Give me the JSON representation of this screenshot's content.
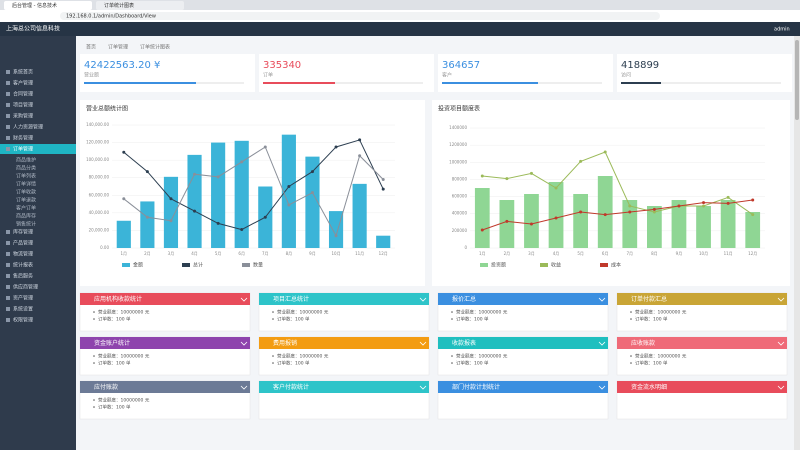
{
  "browser": {
    "tabs": [
      "后台管理 - 信息技术",
      "订单统计图表"
    ],
    "url": "192.168.0.1/admin/Dashboard/View"
  },
  "header": {
    "title": "上海总公司信息科技",
    "user": "admin"
  },
  "sidebar": {
    "items": [
      "系统首页",
      "客户管理",
      "合同管理",
      "项目管理",
      "采购管理",
      "人力资源管理",
      "财务管理",
      "订单管理"
    ],
    "active": 7,
    "subitems": [
      "商品维护",
      "商品分类",
      "订单列表",
      "订单详情",
      "订单收款",
      "订单退款",
      "客户订单",
      "商品库存",
      "销售统计"
    ],
    "more": [
      "库存管理",
      "产品管理",
      "物流管理",
      "统计报表",
      "售后服务",
      "供应商管理",
      "资产管理",
      "系统设置",
      "权限管理"
    ]
  },
  "breadcrumb": [
    "首页",
    "订单管理",
    "订单统计图表"
  ],
  "stats": [
    {
      "value": "42422563.20 ¥",
      "label": "营业额",
      "color": "#3b8fe0",
      "progress": 70
    },
    {
      "value": "335340",
      "label": "订单",
      "color": "#e84c5b",
      "progress": 45
    },
    {
      "value": "364657",
      "label": "客户",
      "color": "#3b8fe0",
      "progress": 60
    },
    {
      "value": "418899",
      "label": "访问",
      "color": "#2c3e50",
      "progress": 25
    }
  ],
  "chart_data": [
    {
      "type": "bar_line",
      "title": "营业总额统计图",
      "categories": [
        "1月",
        "2月",
        "3月",
        "4月",
        "5月",
        "6月",
        "7月",
        "8月",
        "9月",
        "10月",
        "11月",
        "12月"
      ],
      "ylim": [
        0,
        140000
      ],
      "yticks": [
        {
          "value": 0,
          "label": "0.00"
        },
        {
          "value": 20000,
          "label": "20,000.00"
        },
        {
          "value": 40000,
          "label": "40,000.00"
        },
        {
          "value": 60000,
          "label": "60,000.00"
        },
        {
          "value": 80000,
          "label": "80,000.00"
        },
        {
          "value": 100000,
          "label": "100,000.00"
        },
        {
          "value": 120000,
          "label": "120,000.00"
        },
        {
          "value": 140000,
          "label": "140,000.00"
        }
      ],
      "series": [
        {
          "name": "金额",
          "kind": "bar",
          "color": "#3bb4d8",
          "values": [
            31000,
            53000,
            81000,
            106000,
            120000,
            122000,
            70000,
            129000,
            104000,
            42000,
            73000,
            14000
          ]
        },
        {
          "name": "总计",
          "kind": "line",
          "color": "#2c3e50",
          "values": [
            109000,
            87000,
            56000,
            42000,
            28000,
            21000,
            35000,
            70000,
            87000,
            115000,
            123000,
            67000
          ]
        },
        {
          "name": "数量",
          "kind": "line",
          "color": "#8a8f99",
          "values": [
            56000,
            35000,
            31000,
            84000,
            81000,
            98000,
            115000,
            49000,
            63000,
            14000,
            105000,
            78000
          ]
        }
      ]
    },
    {
      "type": "bar_line",
      "title": "投资项目额度表",
      "categories": [
        "1月",
        "2月",
        "3月",
        "4月",
        "5月",
        "6月",
        "7月",
        "8月",
        "9月",
        "10月",
        "11月",
        "12月"
      ],
      "ylim": [
        0,
        1400000
      ],
      "yticks": [
        0,
        200000,
        400000,
        600000,
        800000,
        1000000,
        1200000,
        1400000
      ],
      "series": [
        {
          "name": "投资额",
          "kind": "bar",
          "color": "#8fd694",
          "values": [
            700000,
            560000,
            630000,
            770000,
            630000,
            840000,
            560000,
            490000,
            560000,
            490000,
            560000,
            420000
          ]
        },
        {
          "name": "收益",
          "kind": "line",
          "color": "#9bba59",
          "values": [
            840000,
            810000,
            870000,
            700000,
            1010000,
            1120000,
            490000,
            420000,
            490000,
            490000,
            590000,
            390000
          ]
        },
        {
          "name": "成本",
          "kind": "line",
          "color": "#c0392b",
          "values": [
            210000,
            310000,
            280000,
            350000,
            420000,
            390000,
            420000,
            450000,
            490000,
            530000,
            520000,
            560000
          ]
        }
      ]
    }
  ],
  "panels": [
    {
      "title": "应用机构收款统计",
      "color": "#e84c5b",
      "lines": [
        "营业额度：10000000 元",
        "订单数：100 单"
      ]
    },
    {
      "title": "项目汇总统计",
      "color": "#2ec4c9",
      "lines": [
        "营业额度：10000000 元",
        "订单数：100 单"
      ]
    },
    {
      "title": "报价汇总",
      "color": "#3b8fe0",
      "lines": [
        "营业额度：10000000 元",
        "订单数：100 单"
      ]
    },
    {
      "title": "订单付款汇总",
      "color": "#c9a536",
      "lines": [
        "营业额度：10000000 元",
        "订单数：100 单"
      ]
    },
    {
      "title": "资金账户统计",
      "color": "#8e44ad",
      "lines": [
        "营业额度：10000000 元",
        "订单数：100 单"
      ]
    },
    {
      "title": "费用报销",
      "color": "#f39c12",
      "lines": [
        "营业额度：10000000 元",
        "订单数：100 单"
      ]
    },
    {
      "title": "收款报表",
      "color": "#1fbfbf",
      "lines": [
        "营业额度：10000000 元",
        "订单数：100 单"
      ]
    },
    {
      "title": "应收账款",
      "color": "#ef6a78",
      "lines": [
        "营业额度：10000000 元",
        "订单数：100 单"
      ]
    },
    {
      "title": "应付账款",
      "color": "#6c7a96",
      "lines": [
        "营业额度：10000000 元",
        "订单数：100 单"
      ]
    },
    {
      "title": "客户付款统计",
      "color": "#2ec4c9",
      "lines": []
    },
    {
      "title": "部门付款计划统计",
      "color": "#3b8fe0",
      "lines": []
    },
    {
      "title": "资金流水明细",
      "color": "#e84c5b",
      "lines": []
    }
  ]
}
